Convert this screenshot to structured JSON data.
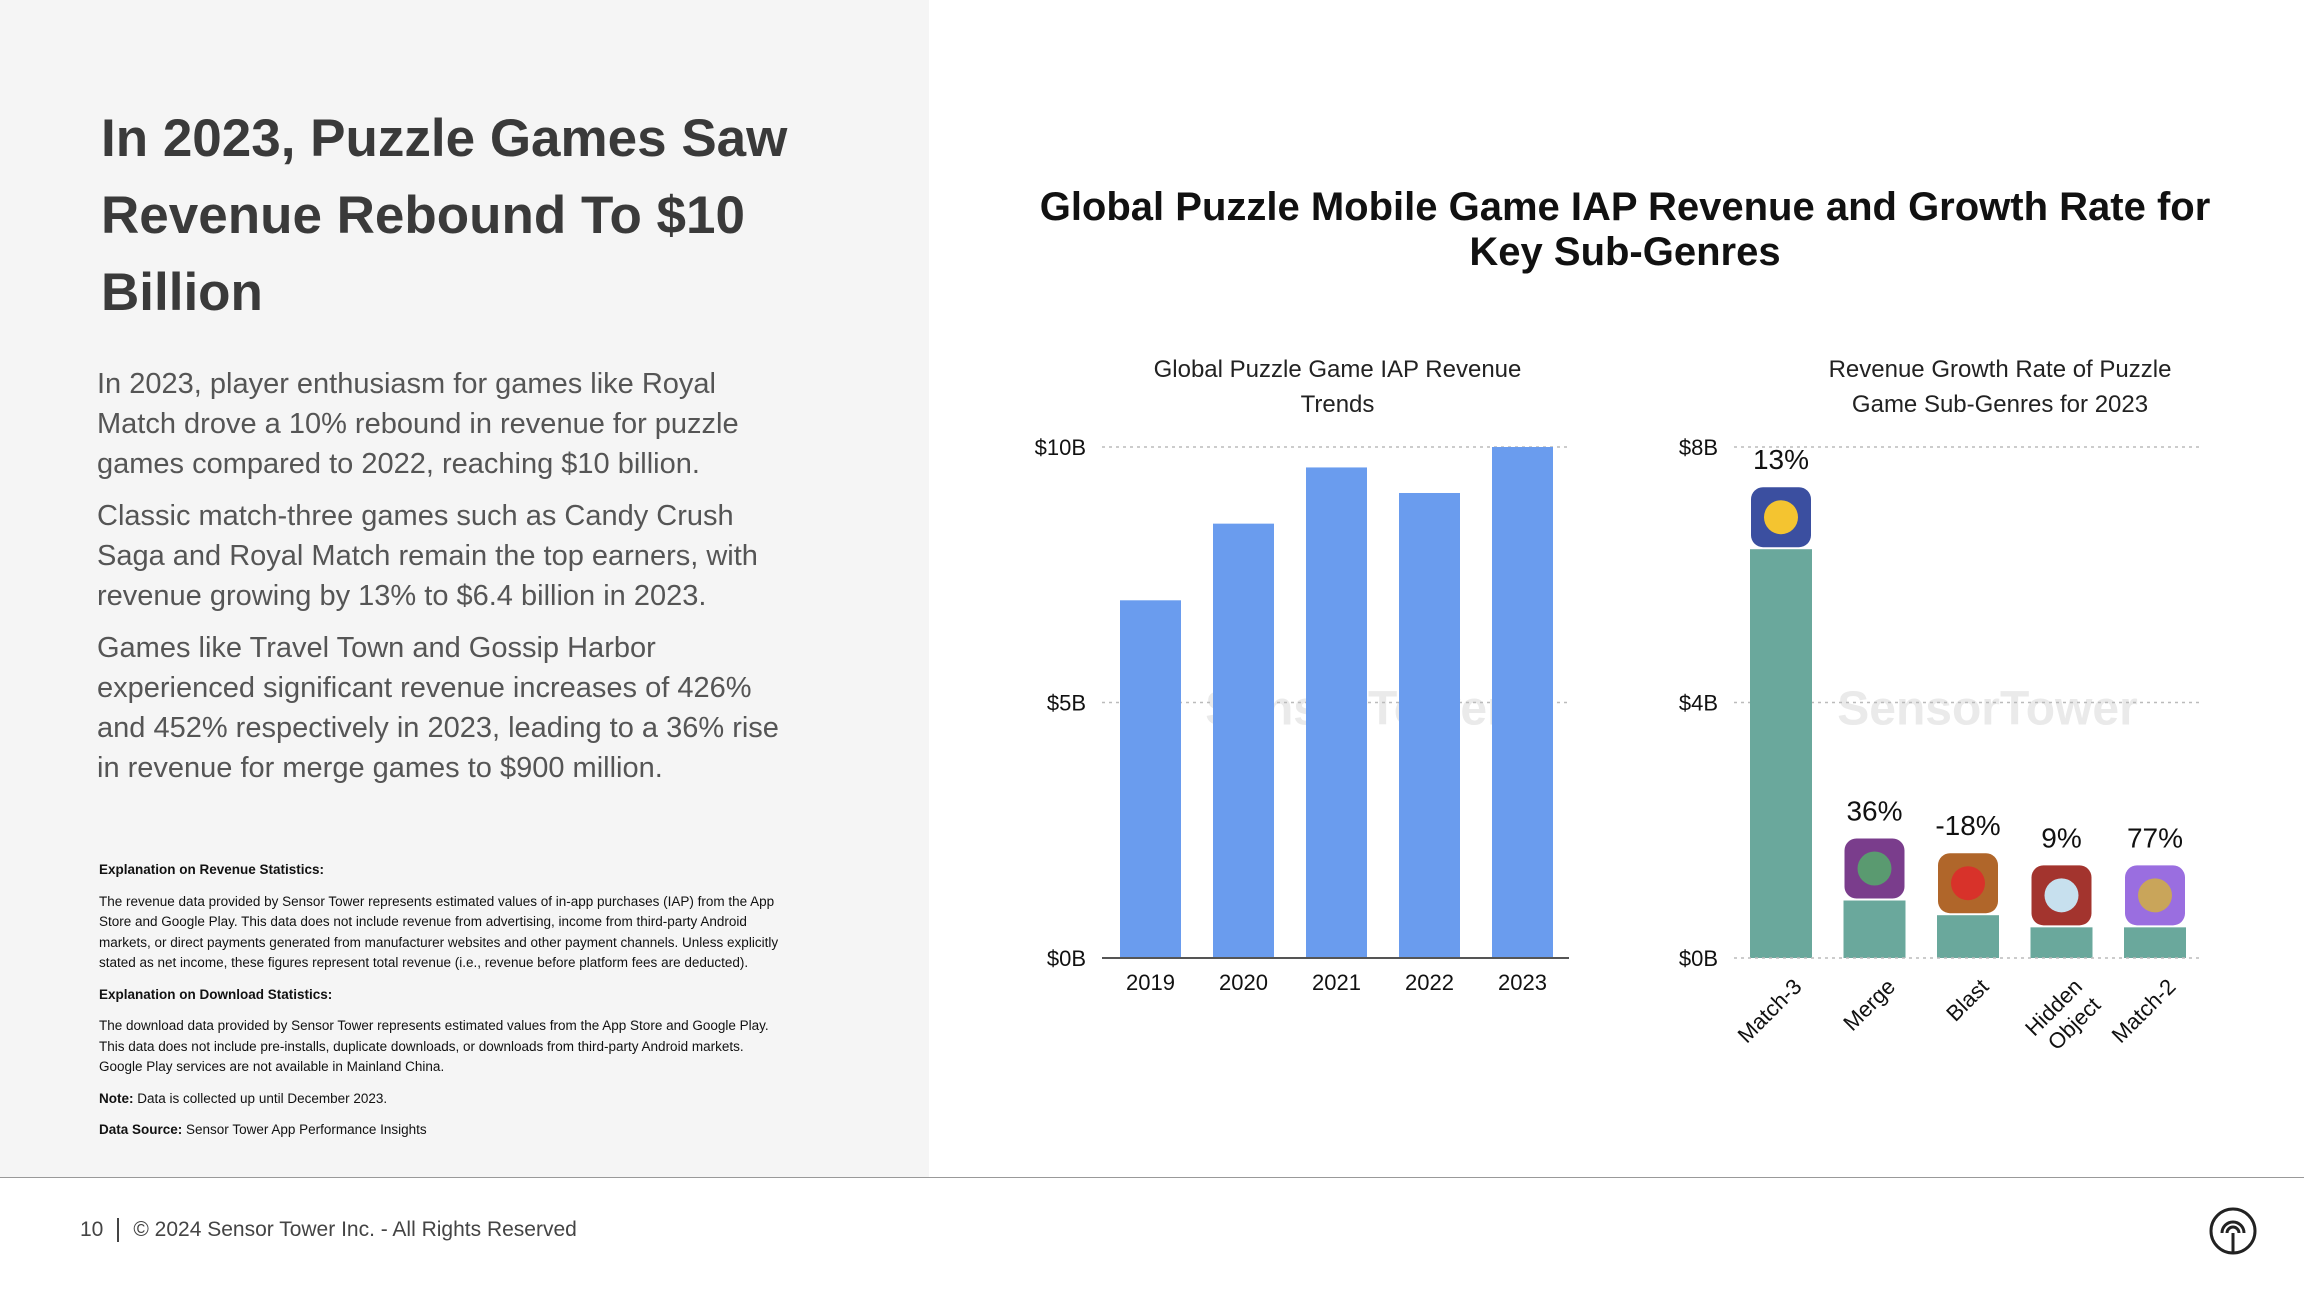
{
  "headline": "In 2023, Puzzle Games Saw Revenue Rebound To $10 Billion",
  "paragraphs": [
    "In 2023, player enthusiasm for games like Royal Match drove a 10% rebound in revenue for puzzle games compared to 2022, reaching $10 billion.",
    "Classic match-three games such as Candy Crush Saga and Royal Match remain the top earners, with revenue growing by 13% to $6.4 billion in 2023.",
    "Games like Travel Town and Gossip Harbor experienced significant revenue increases of 426% and 452% respectively in 2023, leading to a 36% rise in revenue for merge games to $900 million."
  ],
  "notes": {
    "revenue_heading": "Explanation on Revenue Statistics:",
    "revenue_text": "The revenue data provided by Sensor Tower represents estimated values of in-app purchases (IAP) from the App Store and Google Play. This data does not include revenue from advertising, income from third-party Android markets, or direct payments generated from manufacturer websites and other payment channels. Unless explicitly stated as net income, these figures represent total revenue (i.e., revenue before platform fees are deducted).",
    "download_heading": "Explanation on Download Statistics:",
    "download_text": "The download data provided by Sensor Tower represents estimated values from the App Store and Google Play. This data does not include pre-installs, duplicate downloads, or downloads from third-party Android markets. Google Play services are not available in Mainland China.",
    "note_label": "Note:",
    "note_text": " Data is collected up until December 2023.",
    "source_label": "Data Source:",
    "source_text": " Sensor Tower App Performance Insights"
  },
  "footer": {
    "page": "10",
    "copyright": "© 2024 Sensor Tower Inc. - All Rights Reserved"
  },
  "main_title": "Global Puzzle Mobile Game IAP Revenue and Growth Rate for Key Sub-Genres",
  "watermark": "SensorTower",
  "chart_data": [
    {
      "type": "bar",
      "title": "Global Puzzle Game IAP Revenue Trends",
      "categories": [
        "2019",
        "2020",
        "2021",
        "2022",
        "2023"
      ],
      "values": [
        7.0,
        8.5,
        9.6,
        9.1,
        10.0
      ],
      "unit": "$B",
      "ylim": [
        0,
        10
      ],
      "yticks": [
        "$0B",
        "$5B",
        "$10B"
      ],
      "ytick_values": [
        0,
        5,
        10
      ],
      "grid": "dotted",
      "color": "#6a9cee"
    },
    {
      "type": "bar",
      "title": "Revenue Growth Rate of Puzzle Game Sub-Genres for 2023",
      "categories": [
        "Match-3",
        "Merge",
        "Blast",
        "Hidden Object",
        "Match-2"
      ],
      "values": [
        6.4,
        0.9,
        0.67,
        0.48,
        0.48
      ],
      "data_labels": [
        "13%",
        "36%",
        "-18%",
        "9%",
        "77%"
      ],
      "icons": [
        "royal-match-icon",
        "merge-game-icon",
        "bear-blast-icon",
        "hidden-object-icon",
        "butterfly-match-icon"
      ],
      "unit": "$B",
      "ylim": [
        0,
        8
      ],
      "yticks": [
        "$0B",
        "$4B",
        "$8B"
      ],
      "ytick_values": [
        0,
        4,
        8
      ],
      "grid": "dotted",
      "color": "#6aa89c"
    }
  ]
}
